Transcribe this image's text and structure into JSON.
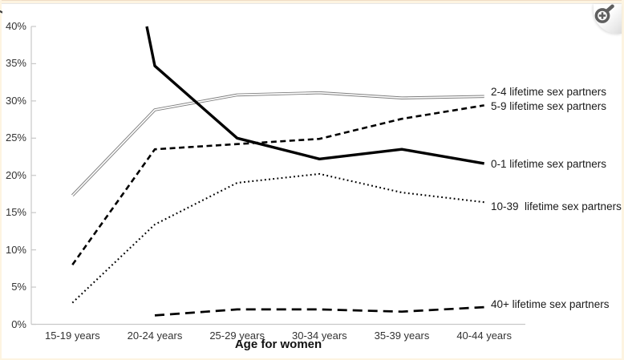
{
  "page": {
    "background": "#ffffff",
    "frame_color": "#fdf4e1",
    "axis_color": "#c8c8c8",
    "text_color": "#262626"
  },
  "zoom_button": {
    "icon": "magnifier-plus-icon",
    "icon_color": "#5f5f5f"
  },
  "chart_data": {
    "type": "line",
    "title": "",
    "xlabel": "Age for women",
    "ylabel": "",
    "categories": [
      "15-19 years",
      "20-24 years",
      "25-29 years",
      "30-34 years",
      "35-39 years",
      "40-44 years"
    ],
    "y_ticks": [
      "40%",
      "35%",
      "30%",
      "25%",
      "20%",
      "15%",
      "10%",
      "5%",
      "0%"
    ],
    "ylim": [
      0,
      40
    ],
    "y_tick_step": 5,
    "grid": false,
    "legend_position": "labels-at-line-ends",
    "note": "0-1 series enters clipped from above the 40% axis maximum before the 20-24 point; its 15-19 value and the 40+ series 15-19 value are not shown.",
    "series": [
      {
        "name": "2-4 lifetime sex partners",
        "style": "double-solid",
        "color": "#7f7f7f",
        "values": [
          17.3,
          28.8,
          30.8,
          31.1,
          30.4,
          30.6
        ],
        "label_dy": -5
      },
      {
        "name": "5-9 lifetime sex partners",
        "style": "dashed",
        "color": "#000000",
        "values": [
          8.0,
          23.5,
          24.2,
          24.9,
          27.6,
          29.4
        ],
        "label_dy": 2
      },
      {
        "name": "0-1 lifetime sex partners",
        "style": "solid-thick",
        "color": "#000000",
        "values": [
          null,
          34.7,
          25.0,
          22.2,
          23.5,
          21.6
        ],
        "clipped_entry": true,
        "label_dy": 1
      },
      {
        "name": "10-39  lifetime sex partners",
        "style": "dotted",
        "color": "#000000",
        "values": [
          2.9,
          13.4,
          19.0,
          20.2,
          17.7,
          16.4
        ],
        "label_dy": 6
      },
      {
        "name": "40+ lifetime sex partners",
        "style": "long-dash",
        "color": "#000000",
        "values": [
          null,
          1.2,
          2.0,
          2.0,
          1.7,
          2.3
        ],
        "label_dy": -3
      }
    ]
  }
}
